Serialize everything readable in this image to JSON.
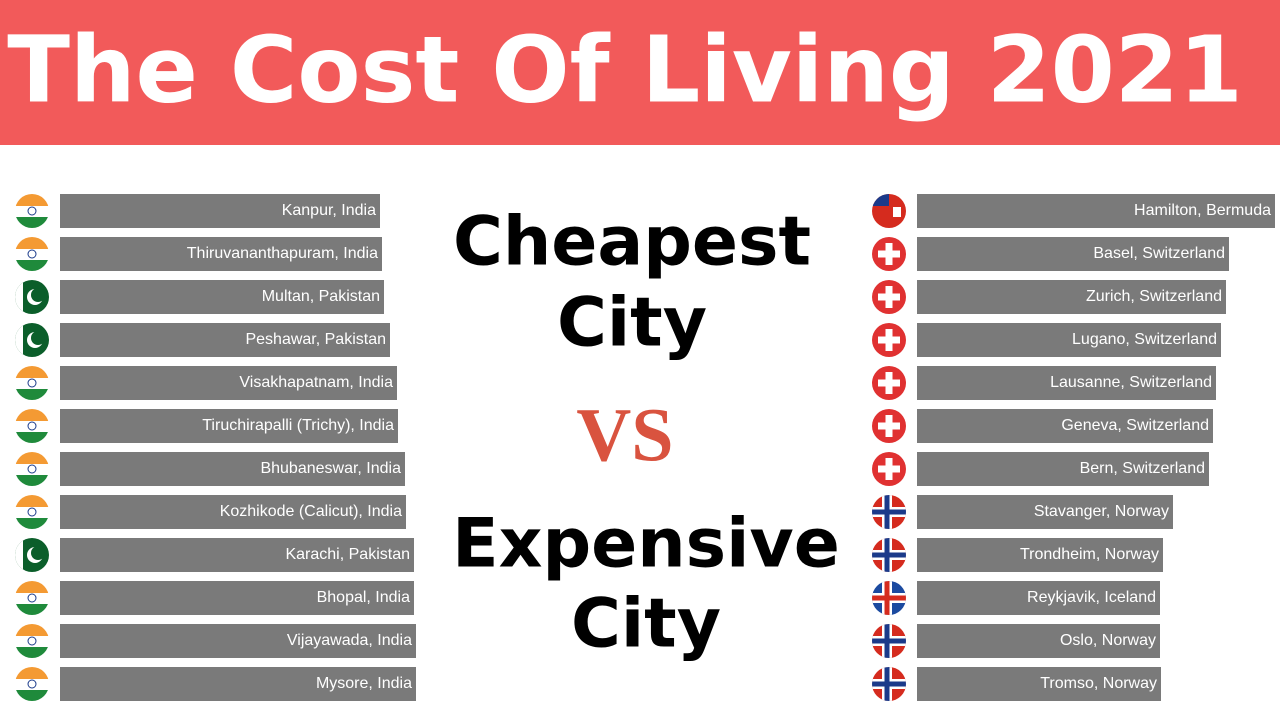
{
  "title": "The Cost Of Living 2021",
  "headings": {
    "left": [
      "Cheapest",
      "City"
    ],
    "middle": "VS",
    "right": [
      "Expensive",
      "City"
    ]
  },
  "chart_data": [
    {
      "type": "bar",
      "orientation": "horizontal",
      "color": "#7a7a7a",
      "xlim": [
        0,
        360
      ],
      "categories": [
        "Kanpur, India",
        "Thiruvananthapuram, India",
        "Multan, Pakistan",
        "Peshawar, Pakistan",
        "Visakhapatnam, India",
        "Tiruchirapalli (Trichy), India",
        "Bhubaneswar, India",
        "Kozhikode (Calicut), India",
        "Karachi, Pakistan",
        "Bhopal, India",
        "Vijayawada, India",
        "Mysore, India"
      ],
      "values": [
        320,
        322,
        324,
        330,
        337,
        338,
        345,
        346,
        354,
        354,
        356,
        356
      ]
    },
    {
      "type": "bar",
      "orientation": "horizontal",
      "color": "#7a7a7a",
      "xlim": [
        0,
        360
      ],
      "categories": [
        "Hamilton, Bermuda",
        "Basel, Switzerland",
        "Zurich, Switzerland",
        "Lugano, Switzerland",
        "Lausanne, Switzerland",
        "Geneva, Switzerland",
        "Bern, Switzerland",
        "Stavanger, Norway",
        "Trondheim, Norway",
        "Reykjavik, Iceland",
        "Oslo, Norway",
        "Tromso, Norway"
      ],
      "values": [
        358,
        312,
        309,
        304,
        299,
        296,
        292,
        256,
        246,
        243,
        243,
        244
      ]
    }
  ]
}
